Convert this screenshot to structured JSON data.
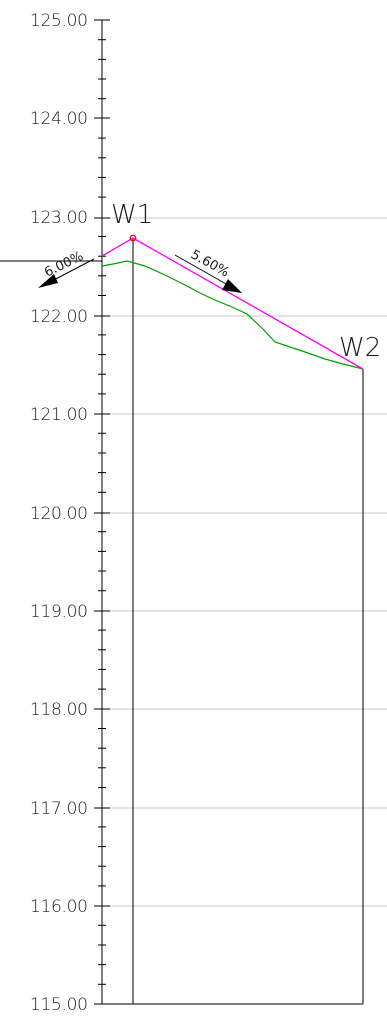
{
  "axis": {
    "elevation_labels": [
      "125.00",
      "124.00",
      "123.00",
      "122.00",
      "121.00",
      "120.00",
      "119.00",
      "118.00",
      "117.00",
      "116.00",
      "115.00"
    ]
  },
  "stations": {
    "w1": "W1",
    "w2": "W2"
  },
  "grades": {
    "left": "6.00%",
    "right": "5.60%"
  },
  "colors": {
    "design_line": "#ff00ff",
    "ground_line": "#00a000",
    "grid": "#c8c8c8",
    "axis": "#000000",
    "vertex_marker": "#ff0000"
  }
}
